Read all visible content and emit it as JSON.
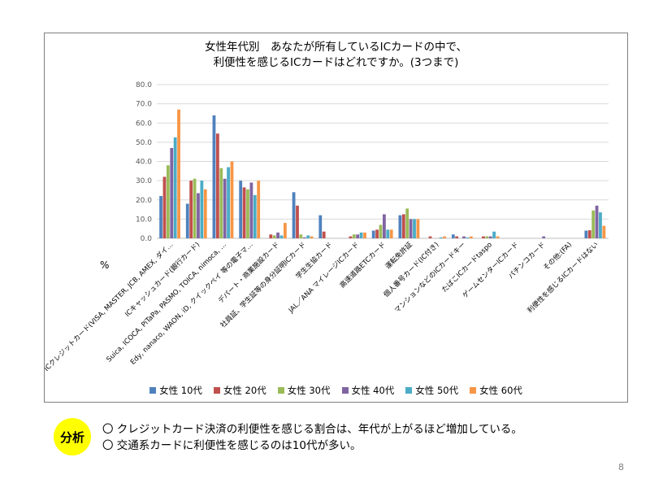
{
  "chart_data": {
    "type": "bar",
    "title_line1": "女性年代別　あなたが所有しているICカードの中で、",
    "title_line2": "利便性を感じるICカードはどれですか。(3つまで)",
    "ylabel": "%",
    "ylim": [
      0,
      80
    ],
    "yticks": [
      "0.0",
      "10.0",
      "20.0",
      "30.0",
      "40.0",
      "50.0",
      "60.0",
      "70.0",
      "80.0"
    ],
    "grid": true,
    "legend_position": "bottom",
    "categories": [
      "ICクレジットカード(VISA, MASTER, JCB, AMEX, ダイ…",
      "ICキャッシュカード(銀行カード)",
      "Suica, ICOCA, PiTaPa, PASMO, TOICA, nimoca, …",
      "Edy, nanaco, WAON, iD, クイックペイ 等の電子マ…",
      "デパート・商業施設カード",
      "社員証、学生証等の身分証明ICカード",
      "学生生協カード",
      "JAL／ANA マイレージICカード",
      "高速道路ETCカード",
      "運転免許証",
      "個人番号カード(IC付き)",
      "マンションなどのICカードキー",
      "たばこICカードtaspo",
      "ゲームセンターICカード",
      "パチンコカード",
      "その他:(FA)",
      "利便性を感じるICカードはない"
    ],
    "series": [
      {
        "name": "女性 10代",
        "color": "#4f81bd",
        "values": [
          22.0,
          18.0,
          64.0,
          30.0,
          0.0,
          24.0,
          12.0,
          0.0,
          4.0,
          12.0,
          0.0,
          2.0,
          0.0,
          0.0,
          0.0,
          0.0,
          4.0
        ]
      },
      {
        "name": "女性 20代",
        "color": "#c0504d",
        "values": [
          32.0,
          30.0,
          54.5,
          26.5,
          2.0,
          17.0,
          3.5,
          1.0,
          4.5,
          12.5,
          1.0,
          1.0,
          1.0,
          0.0,
          0.0,
          0.0,
          4.2
        ]
      },
      {
        "name": "女性 30代",
        "color": "#9bbb59",
        "values": [
          38.0,
          31.0,
          36.5,
          25.5,
          1.5,
          2.0,
          0.0,
          2.0,
          7.0,
          15.5,
          0.0,
          0.0,
          1.0,
          0.0,
          0.0,
          0.0,
          14.5
        ]
      },
      {
        "name": "女性 40代",
        "color": "#8064a2",
        "values": [
          47.0,
          23.5,
          31.0,
          29.0,
          3.0,
          0.5,
          0.0,
          2.0,
          12.5,
          10.0,
          0.0,
          1.0,
          1.0,
          0.0,
          1.0,
          0.0,
          17.0
        ]
      },
      {
        "name": "女性 50代",
        "color": "#4bacc6",
        "values": [
          52.5,
          30.0,
          37.0,
          22.5,
          1.5,
          1.5,
          0.0,
          3.0,
          4.5,
          10.0,
          0.5,
          0.5,
          3.5,
          0.0,
          0.0,
          0.0,
          13.5
        ]
      },
      {
        "name": "女性 60代",
        "color": "#f79646",
        "values": [
          67.0,
          25.5,
          40.0,
          30.0,
          8.0,
          1.0,
          0.0,
          3.0,
          4.5,
          10.0,
          1.0,
          1.0,
          1.0,
          0.0,
          0.0,
          0.0,
          6.5
        ]
      }
    ]
  },
  "analysis": {
    "badge": "分析",
    "line1": "〇 クレジットカード決済の利便性を感じる割合は、年代が上がるほど増加している。",
    "line2": "〇 交通系カードに利便性を感じるのは10代が多い。"
  },
  "page_number": "8"
}
